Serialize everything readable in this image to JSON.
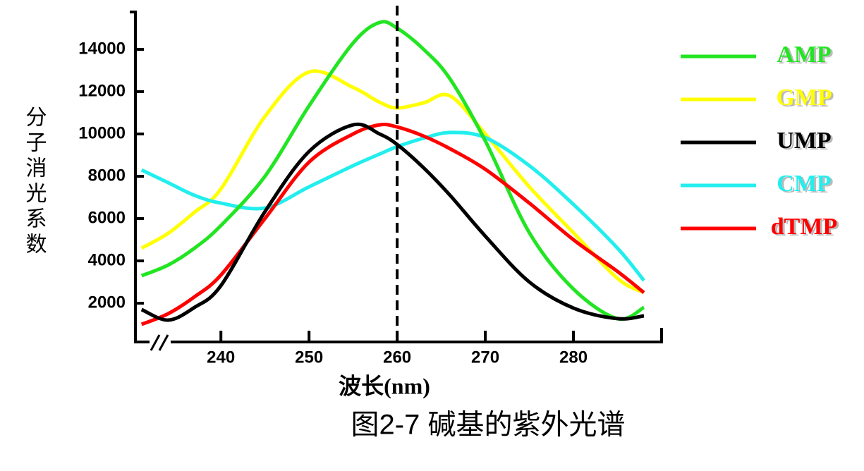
{
  "chart_data": {
    "type": "line",
    "title": "图2-7 碱基的紫外光谱",
    "x_label": "波长(nm)",
    "y_label": "分子消光系数",
    "x": [
      231,
      234,
      237,
      240,
      245,
      250,
      255,
      258,
      260,
      263,
      266,
      270,
      275,
      280,
      285,
      288
    ],
    "series": [
      {
        "name": "AMP",
        "color": "#22e522",
        "values": [
          3300,
          3800,
          4600,
          5670,
          8000,
          11330,
          14300,
          15270,
          15000,
          14000,
          12600,
          9670,
          5330,
          2670,
          1270,
          1800
        ]
      },
      {
        "name": "GMP",
        "color": "#ffff00",
        "values": [
          4600,
          5300,
          6300,
          7400,
          10830,
          12930,
          12200,
          11500,
          11230,
          11470,
          11800,
          10000,
          7500,
          5330,
          3170,
          2500
        ]
      },
      {
        "name": "UMP",
        "color": "#000000",
        "values": [
          1700,
          1200,
          1800,
          2830,
          6330,
          9170,
          10430,
          10000,
          9500,
          8400,
          7100,
          5170,
          3000,
          1770,
          1270,
          1400
        ]
      },
      {
        "name": "CMP",
        "color": "#22eeee",
        "values": [
          8300,
          7700,
          7100,
          6730,
          6500,
          7500,
          8500,
          9050,
          9400,
          9800,
          10070,
          9830,
          8500,
          6670,
          4600,
          3070
        ]
      },
      {
        "name": "dTMP",
        "color": "#ff0000",
        "values": [
          1000,
          1500,
          2300,
          3330,
          6000,
          8670,
          10000,
          10430,
          10330,
          9900,
          9300,
          8330,
          6730,
          5000,
          3500,
          2500
        ]
      }
    ],
    "xlim": [
      230.3,
      290
    ],
    "ylim": [
      200,
      15800
    ],
    "xticks": [
      240,
      250,
      260,
      270,
      280
    ],
    "yticks": [
      2000,
      4000,
      6000,
      8000,
      10000,
      12000,
      14000
    ],
    "reference_x": 260,
    "legend": "right"
  }
}
